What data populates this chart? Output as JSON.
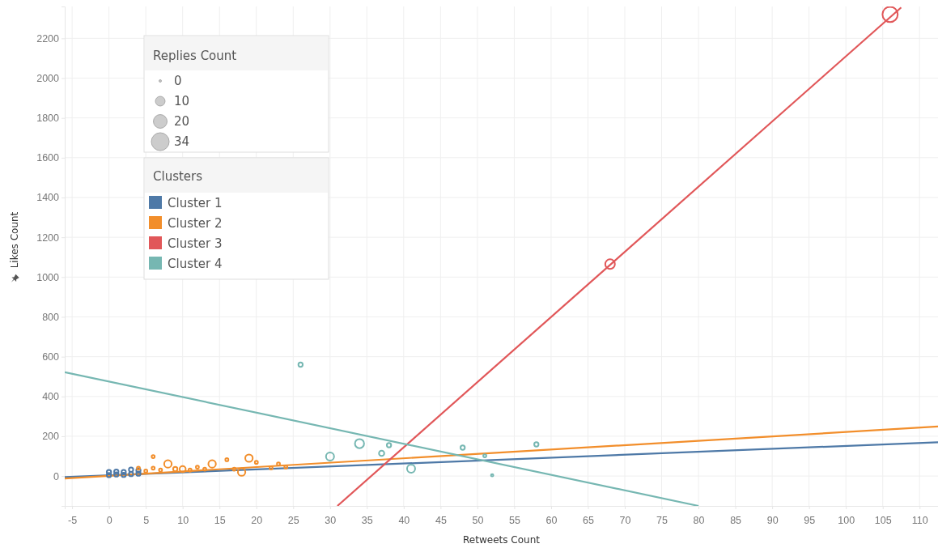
{
  "chart_data": {
    "type": "bubble",
    "xlabel": "Retweets Count",
    "ylabel": "Likes Count",
    "legend_title": "Clusters",
    "annotations": [
      "Replies Count"
    ],
    "size_legend": [
      {
        "value": 0.6,
        "label": "0"
      },
      10,
      20,
      34
    ],
    "xlim": [
      -6,
      112.5
    ],
    "ylim": [
      -150,
      2360
    ],
    "xticks": [
      -5,
      0,
      5,
      10,
      15,
      20,
      25,
      30,
      35,
      40,
      45,
      50,
      55,
      60,
      65,
      70,
      75,
      80,
      85,
      90,
      95,
      100,
      105,
      110
    ],
    "yticks": [
      0,
      200,
      400,
      600,
      800,
      1000,
      1200,
      1400,
      1600,
      1800,
      2000,
      2200
    ],
    "grid": true,
    "legend": "top left",
    "marker": "circle",
    "series": [
      {
        "name": "Cluster 1",
        "color": "#4e79a7",
        "x": [
          0,
          0,
          1,
          1,
          2,
          2,
          3,
          3,
          4,
          4
        ],
        "values": [
          5,
          20,
          8,
          22,
          6,
          20,
          10,
          32,
          12,
          28
        ],
        "sizes": [
          2,
          2,
          2,
          2,
          2,
          2,
          2,
          2,
          2,
          2
        ]
      },
      {
        "name": "Cluster 2",
        "color": "#f28e2b",
        "x": [
          4,
          5,
          6,
          6,
          7,
          8,
          9,
          10,
          11,
          12,
          13,
          14,
          16,
          17,
          18,
          19,
          20,
          22,
          23,
          24
        ],
        "values": [
          40,
          25,
          98,
          40,
          30,
          61,
          35,
          35,
          30,
          45,
          35,
          61,
          82,
          35,
          20,
          90,
          69,
          41,
          61,
          45
        ],
        "sizes": [
          1,
          1,
          1,
          1,
          1,
          6,
          2,
          4,
          1,
          1,
          1,
          6,
          1,
          1,
          6,
          6,
          1,
          1,
          1,
          1
        ]
      },
      {
        "name": "Cluster 3",
        "color": "#e15759",
        "x": [
          68,
          106
        ],
        "values": [
          1065,
          2320
        ],
        "sizes": [
          10,
          25
        ]
      },
      {
        "name": "Cluster 4",
        "color": "#76b7b2",
        "x": [
          26,
          30,
          34,
          37,
          38,
          41,
          48,
          51,
          52,
          58
        ],
        "values": [
          560,
          98,
          163,
          114,
          155,
          37,
          143,
          102,
          4,
          159
        ],
        "sizes": [
          2,
          7,
          9,
          3,
          2,
          7,
          2,
          1,
          0.6,
          2
        ]
      },
      {
        "type": "line",
        "marker": "none",
        "color": "#4e79a7",
        "x": [
          -6,
          112.5
        ],
        "values": [
          -5,
          170
        ]
      },
      {
        "type": "line",
        "marker": "none",
        "color": "#f28e2b",
        "x": [
          -6,
          112.5
        ],
        "values": [
          -12,
          249
        ]
      },
      {
        "type": "line",
        "marker": "none",
        "color": "#e15759",
        "x": [
          31,
          107.5
        ],
        "values": [
          -150,
          2355
        ]
      },
      {
        "type": "line",
        "marker": "none",
        "color": "#76b7b2",
        "x": [
          -6,
          80
        ],
        "values": [
          522,
          -150
        ]
      }
    ]
  }
}
